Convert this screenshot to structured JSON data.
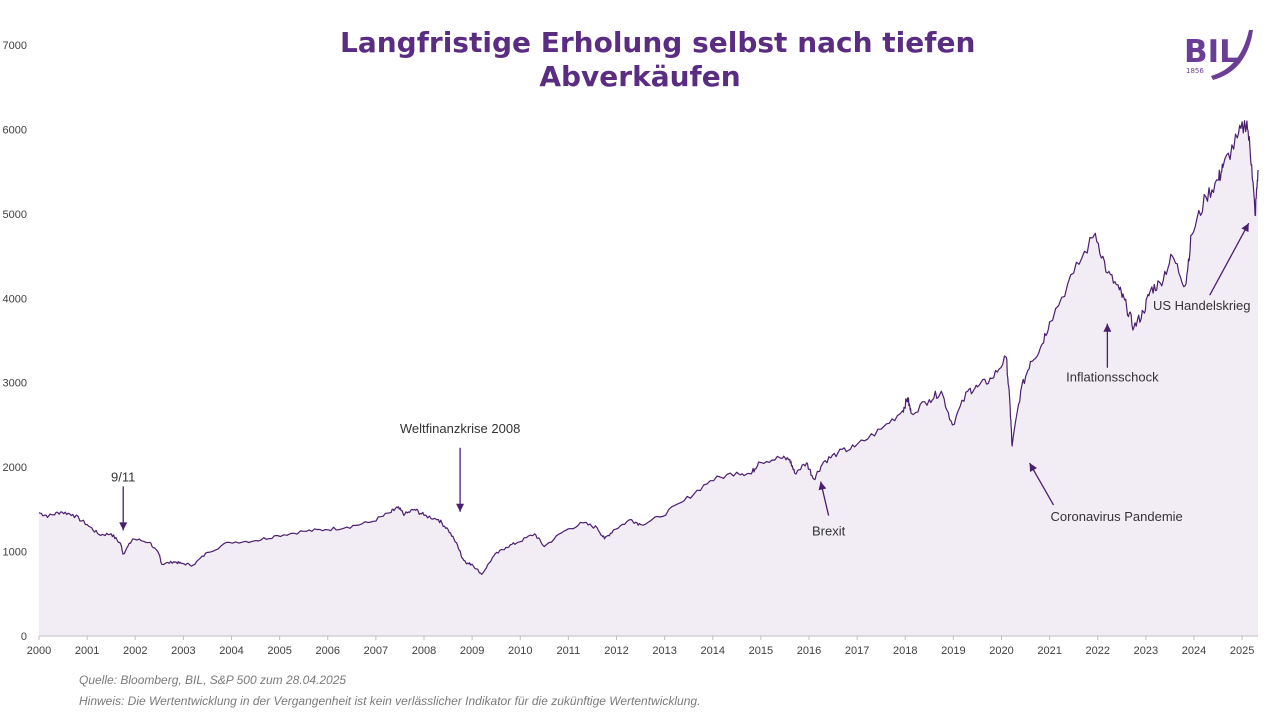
{
  "title": {
    "line1": "Langfristige Erholung selbst nach tiefen",
    "line2": "Abverkäufen"
  },
  "logo": {
    "text": "BIL",
    "year": "1856"
  },
  "colors": {
    "line": "#4b1f6f",
    "fill": "#f2ecf5",
    "title": "#5b2d82",
    "logo": "#6b3d97"
  },
  "footer": {
    "source": "Quelle: Bloomberg, BIL, S&P 500 zum 28.04.2025",
    "note": "Hinweis: Die Wertentwicklung in der Vergangenheit ist kein verlässlicher Indikator für die zukünftige Wertentwicklung."
  },
  "chart_data": {
    "type": "area",
    "xlim": [
      2000,
      2025.33
    ],
    "ylim": [
      0,
      7000
    ],
    "xticks": [
      "2000",
      "2001",
      "2002",
      "2003",
      "2004",
      "2005",
      "2006",
      "2007",
      "2008",
      "2009",
      "2010",
      "2011",
      "2012",
      "2013",
      "2014",
      "2015",
      "2016",
      "2017",
      "2018",
      "2019",
      "2020",
      "2021",
      "2022",
      "2023",
      "2024",
      "2025"
    ],
    "yticks": [
      "0",
      "1000",
      "2000",
      "3000",
      "4000",
      "5000",
      "6000",
      "7000"
    ],
    "grid": false,
    "legend": "none",
    "x": [
      2000.0,
      2000.2,
      2000.45,
      2000.7,
      2001.0,
      2001.25,
      2001.5,
      2001.7,
      2001.75,
      2001.95,
      2002.3,
      2002.5,
      2002.55,
      2002.8,
      2002.95,
      2003.2,
      2003.5,
      2003.95,
      2004.5,
      2004.95,
      2005.5,
      2005.95,
      2006.4,
      2006.9,
      2007.3,
      2007.45,
      2007.6,
      2007.8,
      2008.0,
      2008.3,
      2008.5,
      2008.7,
      2008.8,
      2008.9,
      2009.0,
      2009.2,
      2009.45,
      2009.7,
      2009.95,
      2010.3,
      2010.5,
      2010.9,
      2011.3,
      2011.6,
      2011.75,
      2011.95,
      2012.3,
      2012.5,
      2012.9,
      2013.4,
      2013.95,
      2014.5,
      2014.8,
      2014.95,
      2015.4,
      2015.6,
      2015.7,
      2015.95,
      2016.1,
      2016.3,
      2016.6,
      2016.95,
      2017.5,
      2017.95,
      2018.05,
      2018.12,
      2018.5,
      2018.75,
      2018.98,
      2019.3,
      2019.5,
      2019.8,
      2020.1,
      2020.18,
      2020.22,
      2020.4,
      2020.6,
      2020.8,
      2021.0,
      2021.5,
      2021.95,
      2022.2,
      2022.45,
      2022.6,
      2022.75,
      2022.95,
      2023.1,
      2023.3,
      2023.55,
      2023.82,
      2023.95,
      2024.25,
      2024.5,
      2024.6,
      2024.9,
      2025.1,
      2025.2,
      2025.27,
      2025.33
    ],
    "values": [
      1460,
      1420,
      1470,
      1440,
      1320,
      1200,
      1210,
      1090,
      970,
      1150,
      1110,
      960,
      850,
      880,
      860,
      840,
      990,
      1110,
      1130,
      1190,
      1240,
      1260,
      1290,
      1350,
      1460,
      1520,
      1440,
      1500,
      1430,
      1380,
      1260,
      1070,
      920,
      860,
      850,
      730,
      950,
      1050,
      1110,
      1210,
      1060,
      1240,
      1340,
      1280,
      1150,
      1260,
      1380,
      1320,
      1410,
      1600,
      1840,
      1940,
      1920,
      2060,
      2110,
      2090,
      1930,
      2050,
      1860,
      2060,
      2170,
      2240,
      2450,
      2670,
      2820,
      2640,
      2800,
      2900,
      2500,
      2900,
      2950,
      3050,
      3300,
      2700,
      2250,
      2900,
      3250,
      3400,
      3720,
      4300,
      4770,
      4300,
      4100,
      3900,
      3650,
      3840,
      4100,
      4180,
      4500,
      4150,
      4750,
      5200,
      5400,
      5550,
      5900,
      6100,
      5580,
      4980,
      5520
    ],
    "annotations": [
      {
        "label": "9/11",
        "x": 2001.75,
        "y": 1180
      },
      {
        "label": "Weltfinanzkrise 2008",
        "x": 2008.75,
        "y": 1400
      },
      {
        "label": "Brexit",
        "x": 2016.2,
        "y": 1900
      },
      {
        "label": "Coronavirus Pandemie",
        "x": 2020.5,
        "y": 2120
      },
      {
        "label": "Inflationsschock",
        "x": 2022.2,
        "y": 3770
      },
      {
        "label": "US Handelskrieg",
        "x": 2025.2,
        "y": 4960
      }
    ]
  }
}
